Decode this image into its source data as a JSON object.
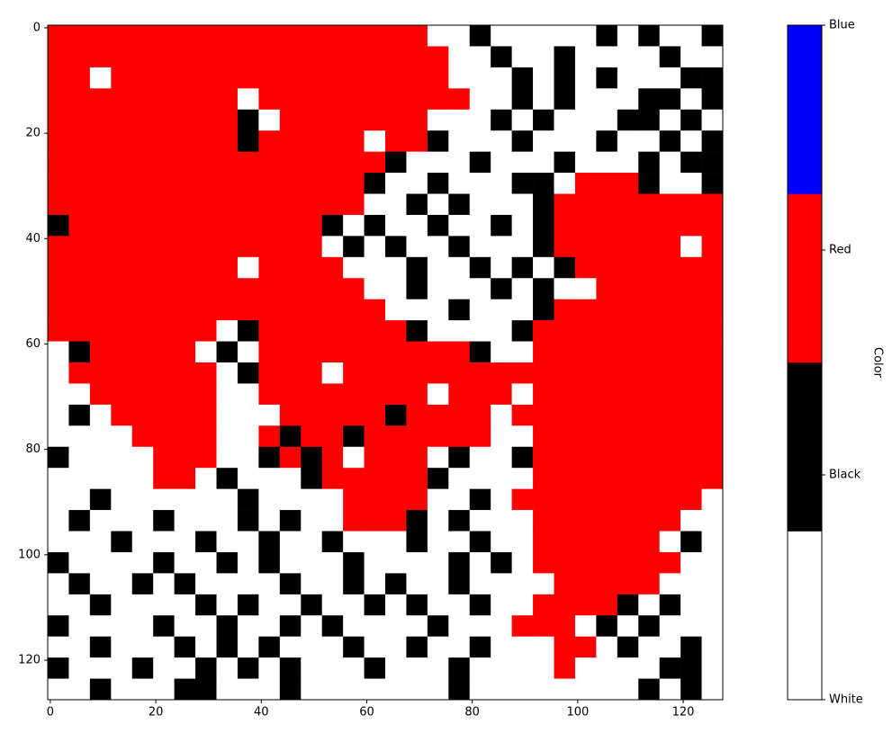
{
  "chart_data": {
    "type": "heatmap",
    "x_edges": [
      -0.5,
      3.5,
      7.5,
      11.5,
      15.5,
      19.5,
      23.5,
      27.5,
      31.5,
      35.5,
      39.5,
      43.5,
      47.5,
      51.5,
      55.5,
      59.5,
      63.5,
      67.5,
      71.5,
      75.5,
      79.5,
      83.5,
      87.5,
      91.5,
      95.5,
      99.5,
      103.5,
      107.5,
      111.5,
      115.5,
      119.5,
      123.5,
      127.5
    ],
    "y_edges": [
      -0.5,
      3.5,
      7.5,
      11.5,
      15.5,
      19.5,
      23.5,
      27.5,
      31.5,
      35.5,
      39.5,
      43.5,
      47.5,
      51.5,
      55.5,
      59.5,
      63.5,
      67.5,
      71.5,
      75.5,
      79.5,
      83.5,
      87.5,
      91.5,
      95.5,
      99.5,
      103.5,
      107.5,
      111.5,
      115.5,
      119.5,
      123.5,
      127.5
    ],
    "xlim": [
      -0.5,
      127.5
    ],
    "ylim": [
      127.5,
      -0.5
    ],
    "xticks": [
      0,
      20,
      40,
      60,
      80,
      100,
      120
    ],
    "yticks": [
      0,
      20,
      40,
      60,
      80,
      100,
      120
    ],
    "colors": [
      "#ffffff",
      "#000000",
      "#ff0000",
      "#0000ff"
    ],
    "colorbar": {
      "label": "Color",
      "clim": [
        0,
        3
      ],
      "ticks": [
        {
          "value": 0,
          "label": "White"
        },
        {
          "value": 1,
          "label": "Black"
        },
        {
          "value": 2,
          "label": "Red"
        },
        {
          "value": 3,
          "label": "Blue"
        }
      ]
    },
    "z": [
      [
        2,
        2,
        2,
        2,
        2,
        2,
        2,
        2,
        2,
        2,
        2,
        2,
        2,
        2,
        2,
        2,
        2,
        2,
        0,
        0,
        1,
        0,
        0,
        0,
        0,
        0,
        1,
        0,
        1,
        0,
        0,
        1
      ],
      [
        2,
        2,
        2,
        2,
        2,
        2,
        2,
        2,
        2,
        2,
        2,
        2,
        2,
        2,
        2,
        2,
        2,
        2,
        2,
        0,
        0,
        1,
        0,
        0,
        1,
        0,
        0,
        0,
        0,
        1,
        0,
        0
      ],
      [
        2,
        2,
        0,
        2,
        2,
        2,
        2,
        2,
        2,
        2,
        2,
        2,
        2,
        2,
        2,
        2,
        2,
        2,
        2,
        0,
        0,
        0,
        1,
        0,
        1,
        0,
        1,
        0,
        0,
        0,
        1,
        1
      ],
      [
        2,
        2,
        2,
        2,
        2,
        2,
        2,
        2,
        2,
        0,
        2,
        2,
        2,
        2,
        2,
        2,
        2,
        2,
        2,
        2,
        0,
        0,
        1,
        0,
        1,
        0,
        0,
        0,
        1,
        1,
        0,
        1
      ],
      [
        2,
        2,
        2,
        2,
        2,
        2,
        2,
        2,
        2,
        1,
        0,
        2,
        2,
        2,
        2,
        2,
        2,
        2,
        0,
        0,
        0,
        1,
        0,
        1,
        0,
        0,
        0,
        1,
        1,
        0,
        1,
        0
      ],
      [
        2,
        2,
        2,
        2,
        2,
        2,
        2,
        2,
        2,
        1,
        2,
        2,
        2,
        2,
        2,
        0,
        2,
        2,
        1,
        0,
        0,
        0,
        1,
        0,
        0,
        0,
        1,
        0,
        0,
        1,
        0,
        1
      ],
      [
        2,
        2,
        2,
        2,
        2,
        2,
        2,
        2,
        2,
        2,
        2,
        2,
        2,
        2,
        2,
        2,
        1,
        0,
        0,
        0,
        1,
        0,
        0,
        0,
        1,
        0,
        0,
        0,
        1,
        0,
        1,
        1
      ],
      [
        2,
        2,
        2,
        2,
        2,
        2,
        2,
        2,
        2,
        2,
        2,
        2,
        2,
        2,
        2,
        1,
        0,
        0,
        1,
        0,
        0,
        0,
        1,
        1,
        0,
        2,
        2,
        2,
        1,
        0,
        0,
        1
      ],
      [
        2,
        2,
        2,
        2,
        2,
        2,
        2,
        2,
        2,
        2,
        2,
        2,
        2,
        2,
        2,
        0,
        0,
        1,
        0,
        1,
        0,
        0,
        0,
        1,
        2,
        2,
        2,
        2,
        2,
        2,
        2,
        2
      ],
      [
        1,
        2,
        2,
        2,
        2,
        2,
        2,
        2,
        2,
        2,
        2,
        2,
        2,
        1,
        0,
        1,
        0,
        0,
        1,
        0,
        0,
        1,
        0,
        1,
        2,
        2,
        2,
        2,
        2,
        2,
        2,
        2
      ],
      [
        2,
        2,
        2,
        2,
        2,
        2,
        2,
        2,
        2,
        2,
        2,
        2,
        2,
        0,
        1,
        0,
        1,
        0,
        0,
        1,
        0,
        0,
        0,
        1,
        2,
        2,
        2,
        2,
        2,
        2,
        0,
        2
      ],
      [
        2,
        2,
        2,
        2,
        2,
        2,
        2,
        2,
        2,
        0,
        2,
        2,
        2,
        2,
        0,
        0,
        0,
        1,
        0,
        0,
        1,
        0,
        1,
        0,
        1,
        2,
        2,
        2,
        2,
        2,
        2,
        2
      ],
      [
        2,
        2,
        2,
        2,
        2,
        2,
        2,
        2,
        2,
        2,
        2,
        2,
        2,
        2,
        2,
        0,
        0,
        1,
        0,
        0,
        0,
        1,
        0,
        1,
        0,
        0,
        2,
        2,
        2,
        2,
        2,
        2
      ],
      [
        2,
        2,
        2,
        2,
        2,
        2,
        2,
        2,
        2,
        2,
        2,
        2,
        2,
        2,
        2,
        2,
        0,
        0,
        0,
        1,
        0,
        0,
        0,
        1,
        2,
        2,
        2,
        2,
        2,
        2,
        2,
        2
      ],
      [
        2,
        2,
        2,
        2,
        2,
        2,
        2,
        2,
        0,
        1,
        2,
        2,
        2,
        2,
        2,
        2,
        2,
        1,
        0,
        0,
        0,
        0,
        1,
        2,
        2,
        2,
        2,
        2,
        2,
        2,
        2,
        2
      ],
      [
        0,
        1,
        2,
        2,
        2,
        2,
        2,
        0,
        1,
        0,
        2,
        2,
        2,
        2,
        2,
        2,
        2,
        2,
        2,
        2,
        1,
        0,
        0,
        2,
        2,
        2,
        2,
        2,
        2,
        2,
        2,
        2
      ],
      [
        0,
        2,
        2,
        2,
        2,
        2,
        2,
        2,
        0,
        1,
        2,
        2,
        2,
        0,
        2,
        2,
        2,
        2,
        2,
        2,
        2,
        2,
        2,
        2,
        2,
        2,
        2,
        2,
        2,
        2,
        2,
        2
      ],
      [
        0,
        0,
        2,
        2,
        2,
        2,
        2,
        2,
        0,
        0,
        2,
        2,
        2,
        2,
        2,
        2,
        2,
        2,
        0,
        2,
        2,
        2,
        0,
        2,
        2,
        2,
        2,
        2,
        2,
        2,
        2,
        2
      ],
      [
        0,
        1,
        0,
        2,
        2,
        2,
        2,
        2,
        0,
        0,
        0,
        2,
        2,
        2,
        2,
        2,
        1,
        2,
        2,
        2,
        2,
        0,
        2,
        2,
        2,
        2,
        2,
        2,
        2,
        2,
        2,
        2
      ],
      [
        0,
        0,
        0,
        0,
        2,
        2,
        2,
        2,
        0,
        0,
        2,
        1,
        2,
        2,
        1,
        2,
        2,
        2,
        2,
        2,
        2,
        0,
        0,
        2,
        2,
        2,
        2,
        2,
        2,
        2,
        2,
        2
      ],
      [
        1,
        0,
        0,
        0,
        0,
        2,
        2,
        2,
        0,
        0,
        1,
        2,
        1,
        2,
        0,
        2,
        2,
        2,
        0,
        1,
        0,
        0,
        1,
        2,
        2,
        2,
        2,
        2,
        2,
        2,
        2,
        2
      ],
      [
        0,
        0,
        0,
        0,
        0,
        2,
        2,
        0,
        1,
        0,
        0,
        0,
        1,
        2,
        2,
        2,
        2,
        2,
        1,
        0,
        0,
        0,
        0,
        2,
        2,
        2,
        2,
        2,
        2,
        2,
        2,
        2
      ],
      [
        0,
        0,
        1,
        0,
        0,
        0,
        0,
        0,
        0,
        1,
        0,
        0,
        0,
        0,
        2,
        2,
        2,
        2,
        0,
        0,
        1,
        0,
        2,
        2,
        2,
        2,
        2,
        2,
        2,
        2,
        2,
        0
      ],
      [
        0,
        1,
        0,
        0,
        0,
        1,
        0,
        0,
        0,
        1,
        0,
        1,
        0,
        0,
        2,
        2,
        2,
        1,
        0,
        1,
        0,
        0,
        0,
        2,
        2,
        2,
        2,
        2,
        2,
        2,
        0,
        0
      ],
      [
        0,
        0,
        0,
        1,
        0,
        0,
        0,
        1,
        0,
        0,
        1,
        0,
        0,
        1,
        0,
        0,
        0,
        1,
        0,
        0,
        1,
        0,
        0,
        2,
        2,
        2,
        2,
        2,
        2,
        0,
        1,
        0
      ],
      [
        1,
        0,
        0,
        0,
        0,
        1,
        0,
        0,
        1,
        0,
        1,
        0,
        0,
        0,
        1,
        0,
        0,
        0,
        0,
        1,
        0,
        1,
        0,
        2,
        2,
        2,
        2,
        2,
        2,
        2,
        0,
        0
      ],
      [
        0,
        1,
        0,
        0,
        1,
        0,
        1,
        0,
        0,
        0,
        0,
        1,
        0,
        0,
        1,
        0,
        1,
        0,
        0,
        1,
        0,
        0,
        0,
        0,
        2,
        2,
        2,
        2,
        2,
        0,
        0,
        0
      ],
      [
        0,
        0,
        1,
        0,
        0,
        0,
        0,
        1,
        0,
        1,
        0,
        0,
        1,
        0,
        0,
        1,
        0,
        1,
        0,
        0,
        1,
        0,
        0,
        2,
        2,
        2,
        2,
        1,
        0,
        1,
        0,
        0
      ],
      [
        1,
        0,
        0,
        0,
        0,
        1,
        0,
        0,
        1,
        0,
        0,
        1,
        0,
        1,
        0,
        0,
        0,
        0,
        1,
        0,
        0,
        0,
        2,
        2,
        2,
        0,
        1,
        0,
        1,
        0,
        0,
        0
      ],
      [
        0,
        0,
        1,
        0,
        0,
        0,
        1,
        0,
        1,
        0,
        1,
        0,
        0,
        0,
        1,
        0,
        0,
        1,
        0,
        0,
        1,
        0,
        0,
        0,
        2,
        2,
        0,
        1,
        0,
        0,
        1,
        0
      ],
      [
        1,
        0,
        0,
        0,
        1,
        0,
        0,
        1,
        0,
        1,
        0,
        1,
        0,
        0,
        0,
        1,
        0,
        0,
        0,
        1,
        0,
        0,
        0,
        0,
        2,
        0,
        0,
        0,
        0,
        1,
        1,
        0
      ],
      [
        0,
        0,
        1,
        0,
        0,
        0,
        1,
        1,
        0,
        0,
        0,
        1,
        0,
        0,
        0,
        0,
        0,
        0,
        0,
        1,
        0,
        0,
        0,
        0,
        0,
        0,
        0,
        0,
        1,
        0,
        1,
        0
      ]
    ]
  }
}
